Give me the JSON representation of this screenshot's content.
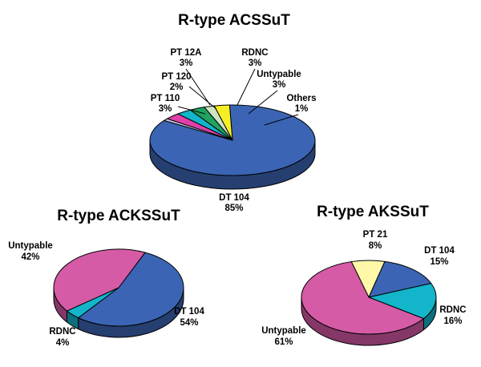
{
  "chart_data": [
    {
      "type": "pie",
      "title": "R-type ACSSuT",
      "slices": [
        {
          "label": "DT 104",
          "value": 85,
          "text": "85%",
          "color": "#3b65b4"
        },
        {
          "label": "PT 110",
          "value": 3,
          "text": "3%",
          "color": "#f6ee25"
        },
        {
          "label": "PT 120",
          "value": 2,
          "text": "2%",
          "color": "#cfe3c5"
        },
        {
          "label": "PT 12A",
          "value": 3,
          "text": "3%",
          "color": "#20a35f"
        },
        {
          "label": "RDNC",
          "value": 3,
          "text": "3%",
          "color": "#12b5c9"
        },
        {
          "label": "Untypable",
          "value": 3,
          "text": "3%",
          "color": "#e040a8"
        },
        {
          "label": "Others",
          "value": 1,
          "text": "1%",
          "color": "#c9c6e4"
        }
      ]
    },
    {
      "type": "pie",
      "title": "R-type ACKSSuT",
      "slices": [
        {
          "label": "DT 104",
          "value": 54,
          "text": "54%",
          "color": "#3b65b4"
        },
        {
          "label": "RDNC",
          "value": 4,
          "text": "4%",
          "color": "#12b5c9"
        },
        {
          "label": "Untypable",
          "value": 42,
          "text": "42%",
          "color": "#d65ba6"
        }
      ]
    },
    {
      "type": "pie",
      "title": "R-type AKSSuT",
      "slices": [
        {
          "label": "PT 21",
          "value": 8,
          "text": "8%",
          "color": "#fff8a8"
        },
        {
          "label": "DT 104",
          "value": 15,
          "text": "15%",
          "color": "#3b65b4"
        },
        {
          "label": "RDNC",
          "value": 16,
          "text": "16%",
          "color": "#12b5c9"
        },
        {
          "label": "Untypable",
          "value": 61,
          "text": "61%",
          "color": "#d65ba6"
        }
      ]
    }
  ]
}
